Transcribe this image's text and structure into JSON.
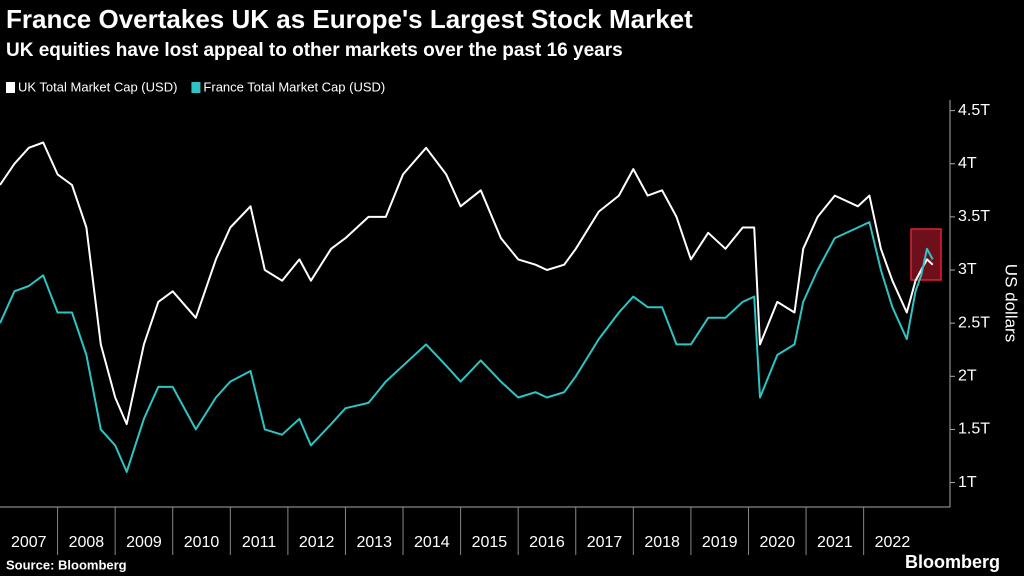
{
  "chart_data": {
    "type": "line",
    "title": "France Overtakes UK as Europe's Largest Stock Market",
    "subtitle": "UK equities have lost appeal to other markets over the past 16 years",
    "y_axis_label": "US dollars",
    "source": "Source: Bloomberg",
    "brand": "Bloomberg",
    "x": [
      2007,
      2007.25,
      2007.5,
      2007.75,
      2008,
      2008.25,
      2008.5,
      2008.75,
      2009,
      2009.2,
      2009.5,
      2009.75,
      2010,
      2010.4,
      2010.75,
      2011,
      2011.35,
      2011.6,
      2011.9,
      2012.2,
      2012.4,
      2012.75,
      2013,
      2013.4,
      2013.7,
      2014,
      2014.4,
      2014.75,
      2015,
      2015.35,
      2015.7,
      2016,
      2016.3,
      2016.5,
      2016.8,
      2017,
      2017.4,
      2017.75,
      2018,
      2018.25,
      2018.5,
      2018.75,
      2019,
      2019.3,
      2019.6,
      2019.9,
      2020.1,
      2020.2,
      2020.5,
      2020.8,
      2020.95,
      2021.2,
      2021.5,
      2021.9,
      2022.1,
      2022.3,
      2022.5,
      2022.75,
      2022.9,
      2023,
      2023.1,
      2023.2
    ],
    "series": [
      {
        "name": "UK Total Market Cap (USD)",
        "color": "#ffffff",
        "values": [
          3.8,
          4.0,
          4.15,
          4.2,
          3.9,
          3.8,
          3.4,
          2.3,
          1.8,
          1.55,
          2.3,
          2.7,
          2.8,
          2.55,
          3.1,
          3.4,
          3.6,
          3.0,
          2.9,
          3.1,
          2.9,
          3.2,
          3.3,
          3.5,
          3.5,
          3.9,
          4.15,
          3.9,
          3.6,
          3.75,
          3.3,
          3.1,
          3.05,
          3.0,
          3.05,
          3.2,
          3.55,
          3.7,
          3.95,
          3.7,
          3.75,
          3.5,
          3.1,
          3.35,
          3.2,
          3.4,
          3.4,
          2.3,
          2.7,
          2.6,
          3.2,
          3.5,
          3.7,
          3.6,
          3.7,
          3.2,
          2.9,
          2.6,
          2.9,
          3.0,
          3.1,
          3.05
        ]
      },
      {
        "name": "France Total Market Cap (USD)",
        "color": "#2ec4c4",
        "values": [
          2.5,
          2.8,
          2.85,
          2.95,
          2.6,
          2.6,
          2.2,
          1.5,
          1.35,
          1.1,
          1.6,
          1.9,
          1.9,
          1.5,
          1.8,
          1.95,
          2.05,
          1.5,
          1.45,
          1.6,
          1.35,
          1.55,
          1.7,
          1.75,
          1.95,
          2.1,
          2.3,
          2.1,
          1.95,
          2.15,
          1.95,
          1.8,
          1.85,
          1.8,
          1.85,
          2.0,
          2.35,
          2.6,
          2.75,
          2.65,
          2.65,
          2.3,
          2.3,
          2.55,
          2.55,
          2.7,
          2.75,
          1.8,
          2.2,
          2.3,
          2.7,
          3.0,
          3.3,
          3.4,
          3.45,
          3.0,
          2.65,
          2.35,
          2.8,
          2.95,
          3.2,
          3.1
        ]
      }
    ],
    "xlim": [
      2007,
      2023.5
    ],
    "xticks": [
      2007,
      2008,
      2009,
      2010,
      2011,
      2012,
      2013,
      2014,
      2015,
      2016,
      2017,
      2018,
      2019,
      2020,
      2021,
      2022
    ],
    "ylim": [
      0.77,
      4.6
    ],
    "yticks": [
      {
        "value": 1,
        "label": "1T"
      },
      {
        "value": 1.5,
        "label": "1.5T"
      },
      {
        "value": 2,
        "label": "2T"
      },
      {
        "value": 2.5,
        "label": "2.5T"
      },
      {
        "value": 3,
        "label": "3T"
      },
      {
        "value": 3.5,
        "label": "3.5T"
      },
      {
        "value": 4,
        "label": "4T"
      },
      {
        "value": 4.5,
        "label": "4.5T"
      }
    ],
    "grid": false
  }
}
